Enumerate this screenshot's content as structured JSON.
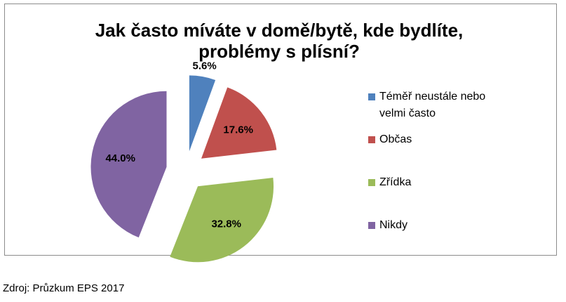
{
  "chart_data": {
    "type": "pie",
    "title": [
      "Jak často míváte v domě/bytě, kde bydlíte,",
      "problémy s plísní?"
    ],
    "slices": [
      {
        "label": "Téměř neustále nebo velmi často",
        "legend_lines": [
          "Téměř neustále nebo",
          "velmi často"
        ],
        "value": 5.6,
        "value_label": "5.6%",
        "color": "#4f81bd"
      },
      {
        "label": "Občas",
        "legend_lines": [
          "Občas"
        ],
        "value": 17.6,
        "value_label": "17.6%",
        "color": "#c0504d"
      },
      {
        "label": "Zřídka",
        "legend_lines": [
          "Zřídka"
        ],
        "value": 32.8,
        "value_label": "32.8%",
        "color": "#9bbb59"
      },
      {
        "label": "Nikdy",
        "legend_lines": [
          "Nikdy"
        ],
        "value": 44.0,
        "value_label": "44.0%",
        "color": "#8064a2"
      }
    ],
    "exploded": true,
    "legend_position": "right"
  },
  "source_note": "Zdroj: Průzkum EPS 2017"
}
